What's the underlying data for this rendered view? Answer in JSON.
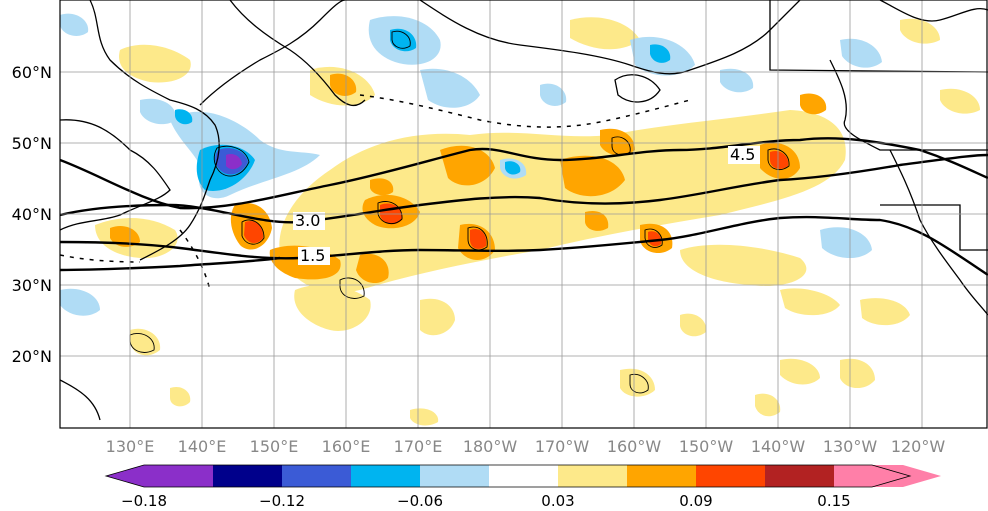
{
  "map": {
    "lat_labels": [
      "60°N",
      "50°N",
      "40°N",
      "30°N",
      "20°N"
    ],
    "lon_labels": [
      "130°E",
      "140°E",
      "150°E",
      "160°E",
      "170°E",
      "180°W",
      "170°W",
      "160°W",
      "150°W",
      "140°W",
      "130°W",
      "120°W"
    ],
    "contour_labels": [
      "4.5",
      "3.0",
      "1.5"
    ]
  },
  "colorbar": {
    "tick_labels": [
      "−0.18",
      "−0.12",
      "−0.06",
      "0.03",
      "0.09",
      "0.15"
    ],
    "colors": [
      "#8b2fc9",
      "#00008b",
      "#3b5bd6",
      "#00b4f0",
      "#b0dcf5",
      "#ffffff",
      "#fde98a",
      "#ffa500",
      "#ff4500",
      "#b22222",
      "#ff7fa8"
    ]
  }
}
